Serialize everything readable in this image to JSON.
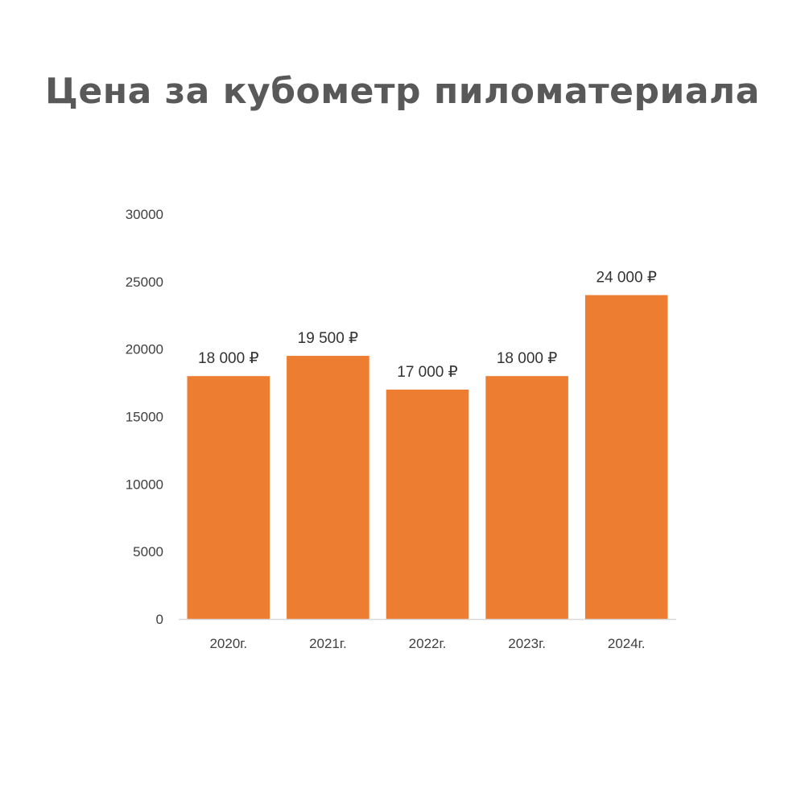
{
  "title": "Цена за кубометр пиломатериала",
  "chart_data": {
    "type": "bar",
    "title": "Цена за кубометр пиломатериала",
    "xlabel": "",
    "ylabel": "",
    "categories": [
      "2020г.",
      "2021г.",
      "2022г.",
      "2023г.",
      "2024г."
    ],
    "values": [
      18000,
      19500,
      17000,
      18000,
      24000
    ],
    "data_labels": [
      "18 000 ₽",
      "19 500 ₽",
      "17 000 ₽",
      "18 000 ₽",
      "24 000 ₽"
    ],
    "ylim": [
      0,
      30000
    ],
    "yticks": [
      "0",
      "5000",
      "10000",
      "15000",
      "20000",
      "25000",
      "30000"
    ],
    "grid": false,
    "legend": "none",
    "bar_color": "#ED7D31",
    "axis_color": "#D9D9D9"
  }
}
